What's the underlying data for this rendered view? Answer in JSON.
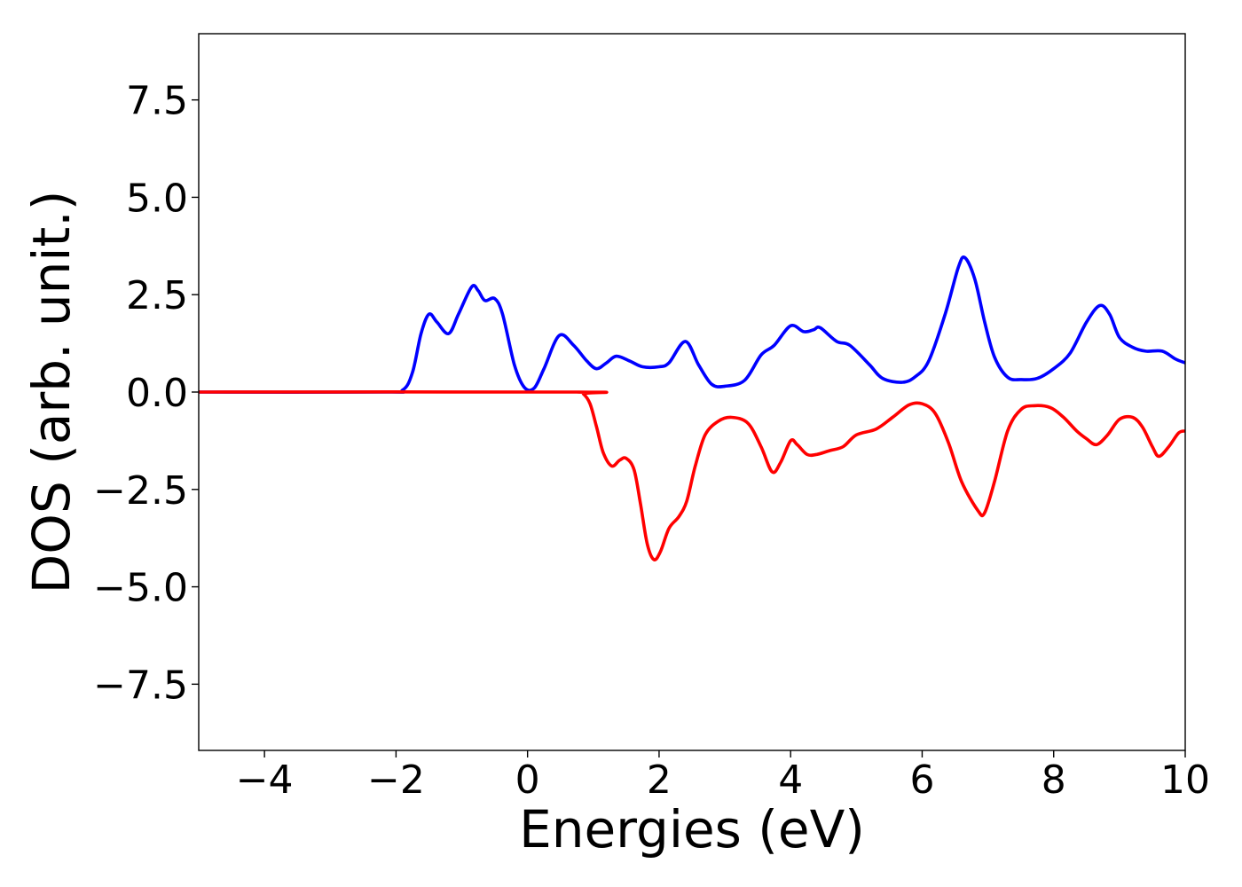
{
  "chart_data": {
    "type": "line",
    "title": "",
    "xlabel": "Energies (eV)",
    "ylabel": "DOS (arb. unit.)",
    "xlim": [
      -5,
      10
    ],
    "ylim": [
      -9.2,
      9.2
    ],
    "xticks": [
      -4,
      -2,
      0,
      2,
      4,
      6,
      8,
      10
    ],
    "xtick_labels": [
      "−4",
      "−2",
      "0",
      "2",
      "4",
      "6",
      "8",
      "10"
    ],
    "yticks": [
      -7.5,
      -5.0,
      -2.5,
      0.0,
      2.5,
      5.0,
      7.5
    ],
    "ytick_labels": [
      "−7.5",
      "−5.0",
      "−2.5",
      "0.0",
      "2.5",
      "5.0",
      "7.5"
    ],
    "grid": false,
    "legend": "none",
    "series": [
      {
        "color": "#0000ff",
        "points": [
          [
            -5.0,
            0.0
          ],
          [
            -2.2,
            0.0
          ],
          [
            -1.9,
            0.05
          ],
          [
            -1.75,
            0.5
          ],
          [
            -1.62,
            1.5
          ],
          [
            -1.5,
            2.0
          ],
          [
            -1.38,
            1.8
          ],
          [
            -1.2,
            1.5
          ],
          [
            -1.05,
            2.0
          ],
          [
            -0.85,
            2.7
          ],
          [
            -0.75,
            2.6
          ],
          [
            -0.65,
            2.35
          ],
          [
            -0.5,
            2.4
          ],
          [
            -0.38,
            2.0
          ],
          [
            -0.2,
            0.7
          ],
          [
            -0.05,
            0.12
          ],
          [
            0.1,
            0.1
          ],
          [
            0.25,
            0.6
          ],
          [
            0.48,
            1.45
          ],
          [
            0.7,
            1.2
          ],
          [
            0.9,
            0.8
          ],
          [
            1.05,
            0.6
          ],
          [
            1.2,
            0.75
          ],
          [
            1.35,
            0.92
          ],
          [
            1.55,
            0.8
          ],
          [
            1.75,
            0.65
          ],
          [
            2.0,
            0.65
          ],
          [
            2.15,
            0.75
          ],
          [
            2.4,
            1.3
          ],
          [
            2.6,
            0.7
          ],
          [
            2.8,
            0.2
          ],
          [
            3.0,
            0.15
          ],
          [
            3.3,
            0.3
          ],
          [
            3.55,
            0.95
          ],
          [
            3.75,
            1.2
          ],
          [
            4.0,
            1.7
          ],
          [
            4.2,
            1.55
          ],
          [
            4.35,
            1.6
          ],
          [
            4.45,
            1.65
          ],
          [
            4.7,
            1.3
          ],
          [
            4.9,
            1.2
          ],
          [
            5.2,
            0.7
          ],
          [
            5.4,
            0.35
          ],
          [
            5.7,
            0.25
          ],
          [
            5.9,
            0.4
          ],
          [
            6.1,
            0.8
          ],
          [
            6.35,
            2.0
          ],
          [
            6.55,
            3.2
          ],
          [
            6.65,
            3.45
          ],
          [
            6.8,
            2.9
          ],
          [
            6.95,
            1.8
          ],
          [
            7.1,
            0.9
          ],
          [
            7.3,
            0.38
          ],
          [
            7.5,
            0.32
          ],
          [
            7.75,
            0.35
          ],
          [
            8.0,
            0.6
          ],
          [
            8.25,
            1.0
          ],
          [
            8.5,
            1.8
          ],
          [
            8.7,
            2.22
          ],
          [
            8.85,
            2.0
          ],
          [
            9.0,
            1.4
          ],
          [
            9.2,
            1.15
          ],
          [
            9.4,
            1.05
          ],
          [
            9.65,
            1.05
          ],
          [
            9.85,
            0.85
          ],
          [
            10.0,
            0.75
          ]
        ]
      },
      {
        "color": "#ff0000",
        "points": [
          [
            -5.0,
            0.0
          ],
          [
            0.75,
            0.0
          ],
          [
            0.85,
            -0.05
          ],
          [
            0.95,
            -0.3
          ],
          [
            1.05,
            -0.9
          ],
          [
            1.15,
            -1.55
          ],
          [
            1.28,
            -1.9
          ],
          [
            1.4,
            -1.75
          ],
          [
            1.5,
            -1.7
          ],
          [
            1.62,
            -2.0
          ],
          [
            1.72,
            -2.9
          ],
          [
            1.82,
            -3.9
          ],
          [
            1.92,
            -4.3
          ],
          [
            2.02,
            -4.1
          ],
          [
            2.15,
            -3.5
          ],
          [
            2.3,
            -3.2
          ],
          [
            2.42,
            -2.8
          ],
          [
            2.55,
            -1.9
          ],
          [
            2.7,
            -1.1
          ],
          [
            2.9,
            -0.75
          ],
          [
            3.1,
            -0.65
          ],
          [
            3.35,
            -0.8
          ],
          [
            3.55,
            -1.4
          ],
          [
            3.72,
            -2.05
          ],
          [
            3.85,
            -1.8
          ],
          [
            4.0,
            -1.25
          ],
          [
            4.1,
            -1.35
          ],
          [
            4.25,
            -1.6
          ],
          [
            4.4,
            -1.6
          ],
          [
            4.6,
            -1.5
          ],
          [
            4.8,
            -1.4
          ],
          [
            5.0,
            -1.1
          ],
          [
            5.3,
            -0.95
          ],
          [
            5.55,
            -0.65
          ],
          [
            5.8,
            -0.33
          ],
          [
            6.0,
            -0.3
          ],
          [
            6.2,
            -0.55
          ],
          [
            6.4,
            -1.3
          ],
          [
            6.6,
            -2.3
          ],
          [
            6.85,
            -3.05
          ],
          [
            6.95,
            -3.1
          ],
          [
            7.1,
            -2.3
          ],
          [
            7.3,
            -1.0
          ],
          [
            7.5,
            -0.45
          ],
          [
            7.7,
            -0.35
          ],
          [
            7.95,
            -0.4
          ],
          [
            8.15,
            -0.65
          ],
          [
            8.35,
            -1.0
          ],
          [
            8.5,
            -1.2
          ],
          [
            8.65,
            -1.35
          ],
          [
            8.82,
            -1.1
          ],
          [
            9.0,
            -0.7
          ],
          [
            9.2,
            -0.65
          ],
          [
            9.35,
            -0.9
          ],
          [
            9.5,
            -1.4
          ],
          [
            9.6,
            -1.65
          ],
          [
            9.75,
            -1.4
          ],
          [
            9.9,
            -1.05
          ],
          [
            10.0,
            -1.0
          ]
        ]
      }
    ]
  }
}
